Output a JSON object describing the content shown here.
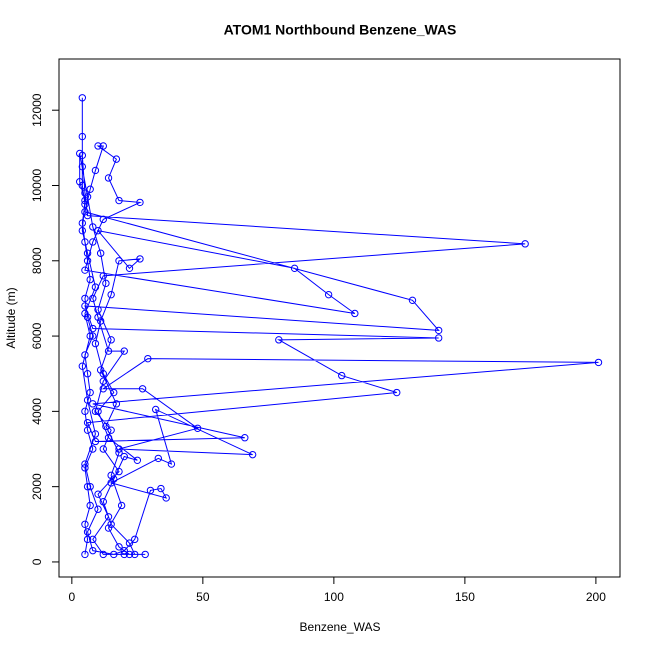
{
  "chart_data": {
    "type": "line",
    "title": "ATOM1 Northbound Benzene_WAS",
    "x_label": "Benzene_WAS",
    "y_label": "Altitude (m)",
    "xlim": [
      -4.9,
      209.2
    ],
    "ylim": [
      -400,
      13360
    ],
    "xticks": [
      0,
      50,
      100,
      150,
      200
    ],
    "yticks": [
      0,
      2000,
      4000,
      6000,
      8000,
      10000,
      12000
    ],
    "grid": false,
    "series": [
      {
        "color": "#0000ff",
        "x": [
          5,
          6,
          5,
          7,
          6,
          5,
          8,
          6,
          5,
          7,
          6,
          5,
          8,
          6,
          5,
          7,
          6,
          5,
          4,
          5,
          4,
          4,
          4,
          4,
          4,
          5,
          6,
          173,
          12,
          8,
          10,
          14,
          20,
          12,
          9,
          15,
          12,
          18,
          10,
          14,
          8,
          12,
          20,
          24,
          22,
          15,
          12,
          16,
          20,
          25,
          14,
          10,
          16,
          12,
          9,
          11,
          15,
          18,
          26,
          22,
          10,
          85,
          98,
          108,
          5,
          8,
          12,
          26,
          18,
          14,
          17,
          10,
          12,
          9,
          7,
          5,
          130,
          140,
          5,
          8,
          140,
          79,
          103,
          124,
          6,
          9,
          66,
          8,
          201,
          29,
          12,
          27,
          48,
          18,
          69,
          32,
          38,
          33,
          15,
          36,
          34,
          30,
          24,
          20,
          16,
          8,
          6,
          10,
          7,
          5,
          9,
          6,
          4,
          7,
          5,
          9,
          6,
          4,
          5,
          3,
          3,
          6,
          8,
          11,
          13,
          10,
          15,
          11,
          17,
          13,
          18,
          15,
          19,
          14,
          18,
          22,
          28
        ],
        "values": [
          200,
          600,
          1000,
          1500,
          2000,
          2500,
          3000,
          3500,
          4000,
          4500,
          5000,
          5500,
          6000,
          6500,
          7000,
          7500,
          8000,
          8500,
          9000,
          9500,
          10000,
          10500,
          11300,
          12330,
          10800,
          9800,
          9200,
          8450,
          7600,
          7000,
          6500,
          5600,
          5600,
          4800,
          4000,
          3500,
          3000,
          2400,
          1800,
          1200,
          600,
          200,
          200,
          200,
          500,
          1000,
          1600,
          2200,
          2800,
          2700,
          3300,
          4000,
          4500,
          5000,
          5800,
          6400,
          7100,
          8000,
          8050,
          7800,
          8800,
          7800,
          7100,
          6600,
          7750,
          8500,
          9100,
          9550,
          9600,
          10200,
          10700,
          11050,
          11050,
          10400,
          9900,
          9300,
          6950,
          6150,
          6800,
          6200,
          5950,
          5900,
          4950,
          4500,
          3700,
          3200,
          3300,
          4200,
          5300,
          5400,
          4600,
          4600,
          3550,
          3000,
          2850,
          4050,
          2600,
          2750,
          2100,
          1700,
          1950,
          1900,
          600,
          300,
          200,
          300,
          800,
          1400,
          2000,
          2600,
          3400,
          4300,
          5200,
          6000,
          6600,
          7300,
          8200,
          8800,
          9600,
          10100,
          10850,
          9700,
          8900,
          8200,
          7400,
          6700,
          5900,
          5100,
          4200,
          3600,
          2900,
          2300,
          1500,
          900,
          400,
          200,
          200
        ]
      }
    ]
  }
}
